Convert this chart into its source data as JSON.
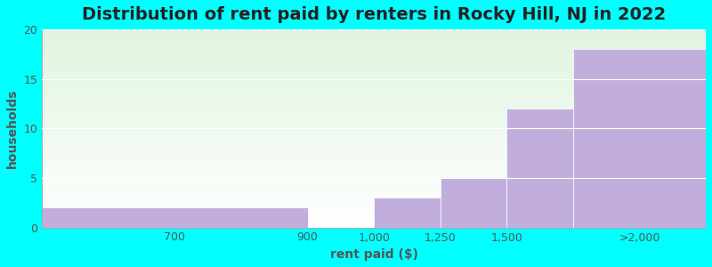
{
  "title": "Distribution of rent paid by renters in Rocky Hill, NJ in 2022",
  "xlabel": "rent paid ($)",
  "ylabel": "households",
  "bar_lefts": [
    0,
    4,
    5,
    6,
    7,
    8
  ],
  "bar_widths": [
    4,
    1,
    1,
    1,
    1,
    2
  ],
  "bar_heights": [
    2,
    0,
    3,
    5,
    12,
    18
  ],
  "bar_color": "#C2AEDD",
  "xtick_positions": [
    2,
    4,
    5,
    6,
    7,
    9
  ],
  "xtick_labels": [
    "700",
    "900",
    "1,000",
    "1,250",
    "1,500",
    ">2,000"
  ],
  "xlim": [
    0,
    10
  ],
  "ylim": [
    0,
    20
  ],
  "yticks": [
    0,
    5,
    10,
    15,
    20
  ],
  "background_outer": "#00FFFF",
  "title_fontsize": 14,
  "axis_label_fontsize": 10,
  "tick_fontsize": 9
}
